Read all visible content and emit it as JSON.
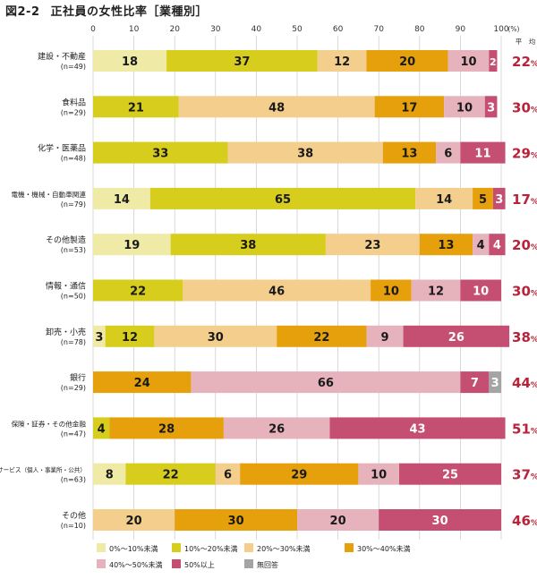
{
  "chart_data": {
    "type": "bar",
    "stacked": true,
    "orientation": "horizontal",
    "figure_number": "図2-2",
    "title": "正社員の女性比率［業種別］",
    "x_unit": "(%)",
    "xlim": [
      0,
      100
    ],
    "x_ticks": [
      "0",
      "10",
      "20",
      "30",
      "40",
      "50",
      "60",
      "70",
      "80",
      "90",
      "100"
    ],
    "average_header": "平　均",
    "grid": true,
    "legend_position": "bottom",
    "categories": [
      {
        "name": "建設・不動産",
        "n": "(n=49)",
        "average": "22",
        "average_unit": "%"
      },
      {
        "name": "食料品",
        "n": "(n=29)",
        "average": "30",
        "average_unit": "%"
      },
      {
        "name": "化学・医薬品",
        "n": "(n=48)",
        "average": "29",
        "average_unit": "%"
      },
      {
        "name": "電機・機械・自動車関連",
        "n": "(n=79)",
        "average": "17",
        "average_unit": "%"
      },
      {
        "name": "その他製造",
        "n": "(n=53)",
        "average": "20",
        "average_unit": "%"
      },
      {
        "name": "情報・通信",
        "n": "(n=50)",
        "average": "30",
        "average_unit": "%"
      },
      {
        "name": "卸売・小売",
        "n": "(n=78)",
        "average": "38",
        "average_unit": "%"
      },
      {
        "name": "銀行",
        "n": "(n=29)",
        "average": "44",
        "average_unit": "%"
      },
      {
        "name": "保険・証券・その他金融",
        "n": "(n=47)",
        "average": "51",
        "average_unit": "%"
      },
      {
        "name": "サービス（個人・事業所・公共）",
        "n": "(n=63)",
        "average": "37",
        "average_unit": "%"
      },
      {
        "name": "その他",
        "n": "(n=10)",
        "average": "46",
        "average_unit": "%"
      }
    ],
    "series": [
      {
        "name": "0%～10%未満",
        "color": "#efeaa6",
        "values": [
          18,
          0,
          0,
          14,
          19,
          0,
          3,
          0,
          0,
          8,
          0
        ]
      },
      {
        "name": "10%～20%未満",
        "color": "#d6cd1c",
        "values": [
          37,
          21,
          33,
          65,
          38,
          22,
          12,
          0,
          4,
          22,
          0
        ]
      },
      {
        "name": "20%～30%未満",
        "color": "#f4ce8c",
        "values": [
          12,
          48,
          38,
          14,
          23,
          46,
          30,
          0,
          0,
          6,
          20
        ]
      },
      {
        "name": "30%～40%未満",
        "color": "#e6a00c",
        "values": [
          20,
          17,
          13,
          5,
          13,
          10,
          22,
          24,
          28,
          29,
          30
        ]
      },
      {
        "name": "40%～50%未満",
        "color": "#e6b3bd",
        "values": [
          10,
          10,
          6,
          0,
          4,
          12,
          9,
          66,
          26,
          10,
          20
        ]
      },
      {
        "name": "50%以上",
        "color": "#c44f72",
        "values": [
          2,
          3,
          11,
          3,
          4,
          10,
          26,
          7,
          43,
          25,
          30
        ]
      },
      {
        "name": "無回答",
        "color": "#a4a4a4",
        "values": [
          0,
          0,
          0,
          0,
          0,
          0,
          0,
          3,
          0,
          0,
          0
        ]
      }
    ],
    "average_color": "#b8233a"
  }
}
